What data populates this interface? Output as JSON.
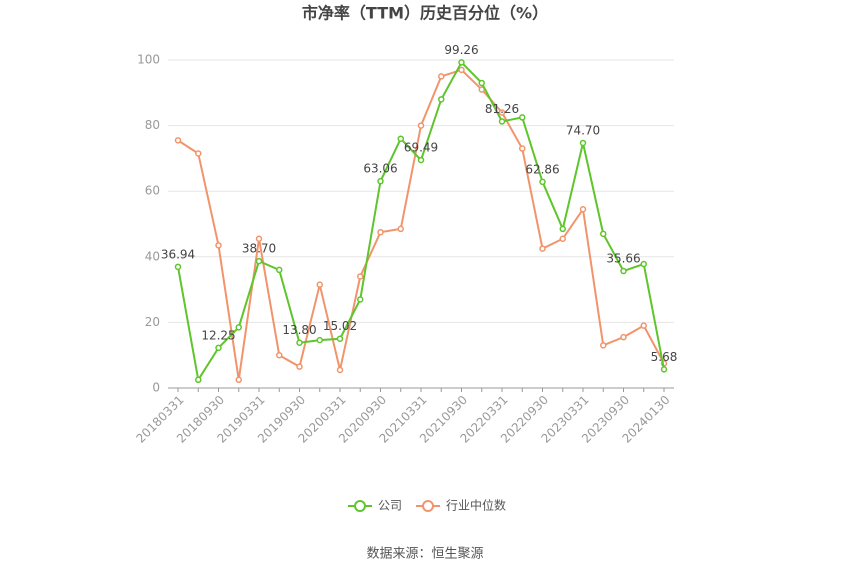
{
  "chart_data": {
    "type": "line",
    "title": "市净率（TTM）历史百分位（%）",
    "categories": [
      "20180331",
      null,
      "20180930",
      null,
      "20190331",
      null,
      "20190930",
      null,
      "20200331",
      null,
      "20200930",
      null,
      "20210331",
      null,
      "20210930",
      null,
      "20220331",
      null,
      "20220930",
      null,
      "20230331",
      null,
      "20230930",
      null,
      "20240130"
    ],
    "series": [
      {
        "name": "公司",
        "color": "#5ec52b",
        "values": [
          36.94,
          2.5,
          12.25,
          18.5,
          38.7,
          36,
          13.8,
          14.6,
          15.02,
          27,
          63.06,
          76,
          69.49,
          88,
          99.26,
          93,
          81.26,
          82.5,
          62.86,
          48.5,
          74.7,
          47,
          35.66,
          37.8,
          5.68
        ],
        "value_labels": [
          "36.94",
          null,
          "12.25",
          null,
          "38.70",
          null,
          "13.80",
          null,
          "15.02",
          null,
          "63.06",
          null,
          "69.49",
          null,
          "99.26",
          null,
          "81.26",
          null,
          "62.86",
          null,
          "74.70",
          null,
          "35.66",
          null,
          "5.68"
        ]
      },
      {
        "name": "行业中位数",
        "color": "#f2946b",
        "values": [
          75.5,
          71.5,
          43.5,
          2.5,
          45.5,
          10,
          6.5,
          31.5,
          5.5,
          34,
          47.5,
          48.5,
          80,
          95,
          97,
          91,
          84,
          73,
          42.5,
          45.5,
          54.5,
          13,
          15.5,
          19,
          7.5
        ]
      }
    ],
    "ylim": [
      0,
      100
    ],
    "yticks": [
      0,
      20,
      40,
      60,
      80,
      100
    ],
    "grid": true,
    "legend": "bottom",
    "source": "数据来源：恒生聚源"
  }
}
